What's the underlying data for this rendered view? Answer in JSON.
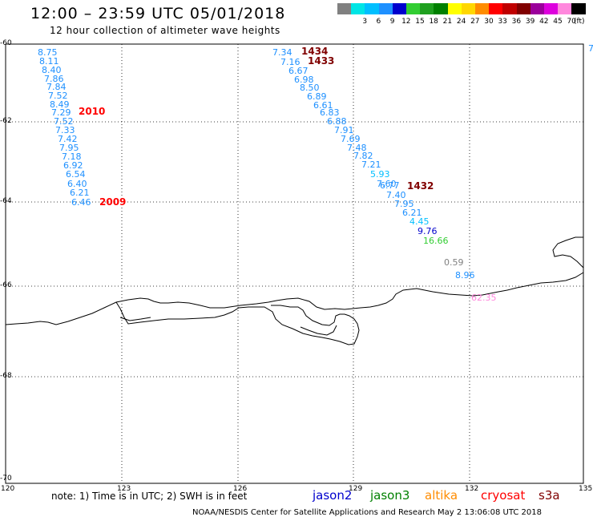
{
  "title": "12:00 – 23:59 UTC 05/01/2018",
  "subtitle": "12 hour collection of altimeter wave heights",
  "scale": {
    "units": "(ft)",
    "bins": [
      {
        "label": "",
        "color": "#808080"
      },
      {
        "label": "3",
        "color": "#00e5e5"
      },
      {
        "label": "6",
        "color": "#00bfff"
      },
      {
        "label": "9",
        "color": "#1e90ff"
      },
      {
        "label": "12",
        "color": "#0000cd"
      },
      {
        "label": "15",
        "color": "#32cd32"
      },
      {
        "label": "18",
        "color": "#1fa01f"
      },
      {
        "label": "21",
        "color": "#008000"
      },
      {
        "label": "24",
        "color": "#ffff00"
      },
      {
        "label": "27",
        "color": "#ffd700"
      },
      {
        "label": "30",
        "color": "#ff8c00"
      },
      {
        "label": "33",
        "color": "#ff0000"
      },
      {
        "label": "36",
        "color": "#c00000"
      },
      {
        "label": "39",
        "color": "#800000"
      },
      {
        "label": "42",
        "color": "#9b009b"
      },
      {
        "label": "45",
        "color": "#dd00dd"
      },
      {
        "label": "70",
        "color": "#ff88dd"
      },
      {
        "label": "",
        "color": "#000000"
      }
    ]
  },
  "lat_labels": [
    "-60",
    "-62",
    "-64",
    "-66",
    "-68",
    "-70"
  ],
  "lon_labels": [
    "120",
    "123",
    "126",
    "129",
    "132",
    "135"
  ],
  "tracks": [
    {
      "values": [
        "8.75",
        "8.11",
        "8.40",
        "7.86",
        "7.84",
        "7.52",
        "8.49",
        "7.29",
        "7.52",
        "7.33",
        "7.42",
        "7.95",
        "7.18",
        "6.92",
        "6.54",
        "6.40",
        "6.21",
        "6.46"
      ],
      "colors": [
        "#1e90ff",
        "#1e90ff",
        "#1e90ff",
        "#1e90ff",
        "#1e90ff",
        "#1e90ff",
        "#1e90ff",
        "#1e90ff",
        "#1e90ff",
        "#1e90ff",
        "#1e90ff",
        "#1e90ff",
        "#1e90ff",
        "#1e90ff",
        "#1e90ff",
        "#1e90ff",
        "#1e90ff",
        "#1e90ff"
      ]
    },
    {
      "values": [
        "7.34",
        "7.16",
        "6.67",
        "6.98",
        "8.50",
        "6.89",
        "6.61",
        "6.83",
        "6.88",
        "7.91",
        "7.69",
        "7.48",
        "7.82",
        "7.21",
        "5.93",
        "7.60",
        "6.77",
        "7.40",
        "7.95",
        "6.21",
        "4.45",
        "9.76",
        "16.66",
        "0.59",
        "8.96",
        "62.35"
      ],
      "colors": [
        "#1e90ff",
        "#1e90ff",
        "#1e90ff",
        "#1e90ff",
        "#1e90ff",
        "#1e90ff",
        "#1e90ff",
        "#1e90ff",
        "#1e90ff",
        "#1e90ff",
        "#1e90ff",
        "#1e90ff",
        "#1e90ff",
        "#1e90ff",
        "#00bfff",
        "#1e90ff",
        "#1e90ff",
        "#1e90ff",
        "#1e90ff",
        "#1e90ff",
        "#00bfff",
        "#0000cd",
        "#32cd32",
        "#808080",
        "#1e90ff",
        "#ff88dd"
      ]
    }
  ],
  "pass_labels": [
    {
      "text": "2010",
      "color": "#ff0000"
    },
    {
      "text": "2009",
      "color": "#ff0000"
    },
    {
      "text": "1434",
      "color": "#800000"
    },
    {
      "text": "1433",
      "color": "#800000"
    },
    {
      "text": "1432",
      "color": "#800000"
    }
  ],
  "edge_value": {
    "text": "7",
    "color": "#1e90ff"
  },
  "note": "note: 1) Time is in UTC; 2) SWH is in feet",
  "legend": [
    {
      "name": "jason2",
      "color": "#0000cd"
    },
    {
      "name": "jason3",
      "color": "#008000"
    },
    {
      "name": "altika",
      "color": "#ff8c00"
    },
    {
      "name": "cryosat",
      "color": "#ff0000"
    },
    {
      "name": "s3a",
      "color": "#800000"
    }
  ],
  "footer": "NOAA/NESDIS Center for Satellite Applications and Research   May  2 13:06:08 UTC 2018"
}
